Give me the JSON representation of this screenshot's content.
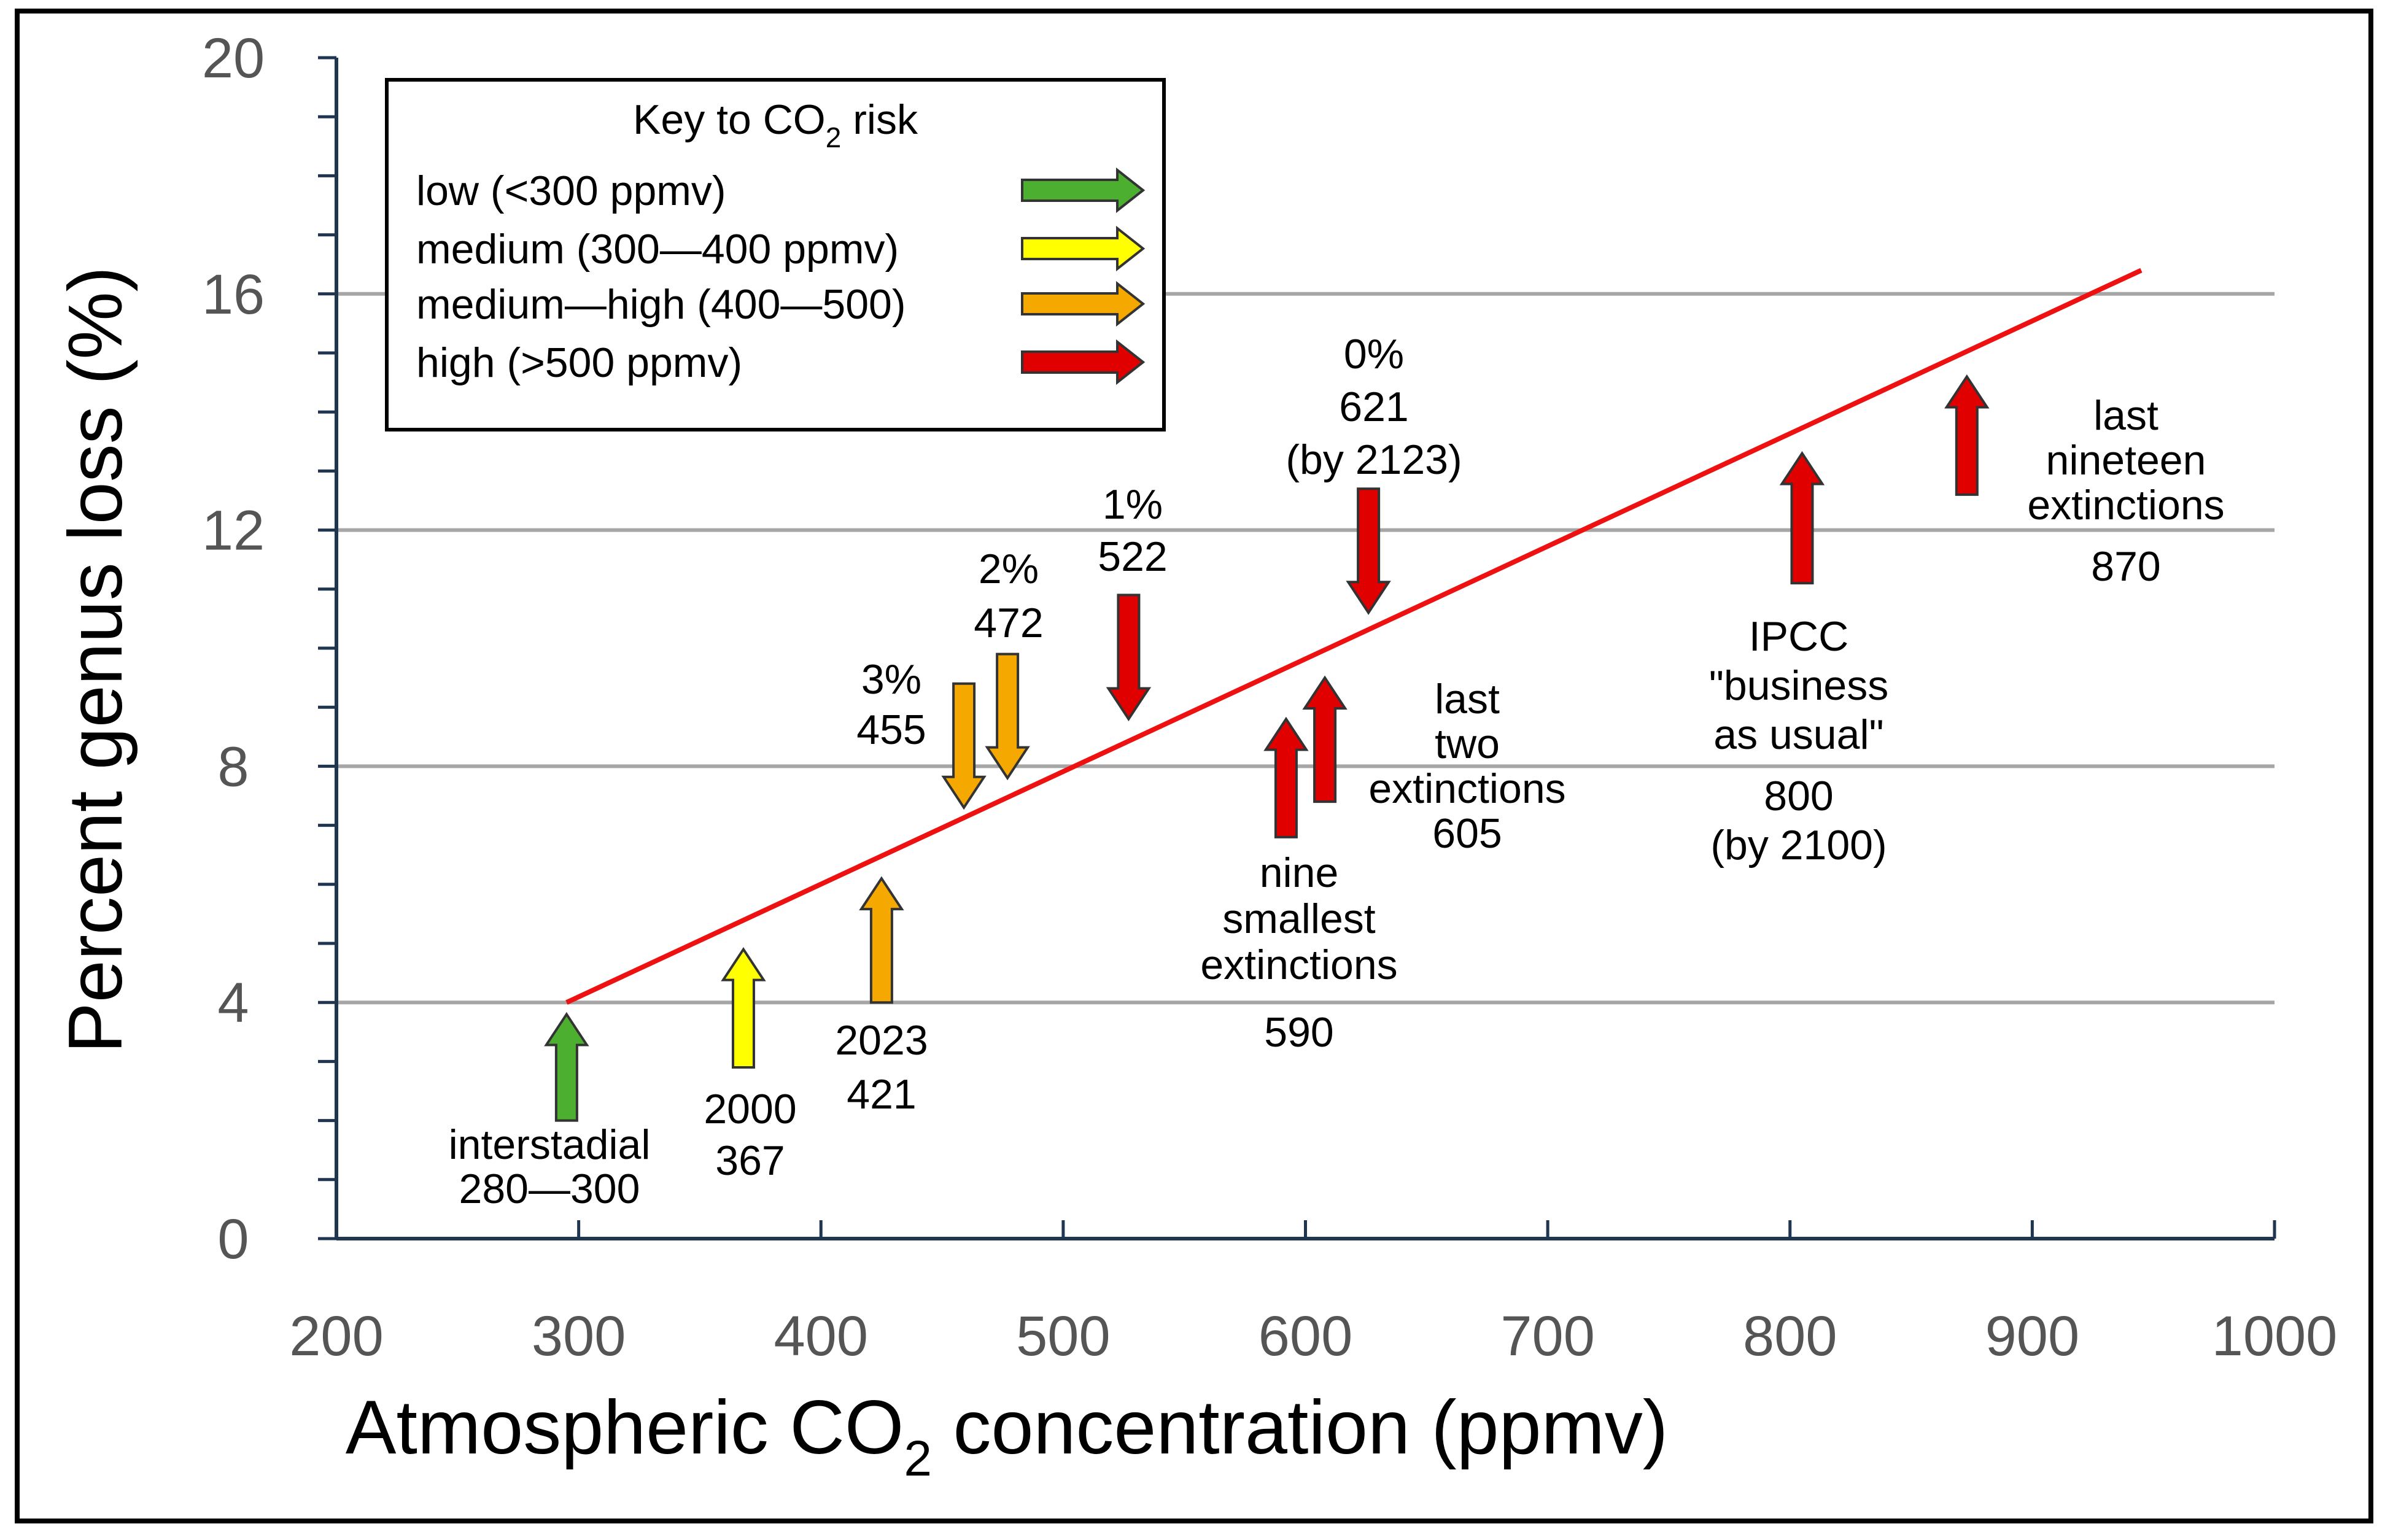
{
  "chart_data": {
    "type": "scatter",
    "title": "",
    "xlabel": "Atmospheric CO",
    "xlabel_sub": "2",
    "xlabel_tail": " concentration (ppmv)",
    "ylabel": "Percent genus loss (%)",
    "xlim": [
      200,
      1000
    ],
    "ylim": [
      0,
      20
    ],
    "x_ticks": [
      200,
      300,
      400,
      500,
      600,
      700,
      800,
      900,
      1000
    ],
    "y_ticks": [
      0,
      4,
      8,
      12,
      16,
      20
    ],
    "y_minor_step": 1,
    "grid": "horizontal at major y ticks",
    "trend_line": {
      "x": [
        295,
        945
      ],
      "y": [
        4.0,
        16.4
      ],
      "color": "#ee1111"
    },
    "risk_colors": {
      "low": "#4caf2f",
      "medium": "#ffff00",
      "medium_high": "#f5a800",
      "high": "#e00000"
    },
    "legend": {
      "title": "Key to CO",
      "title_sub": "2",
      "title_tail": " risk",
      "position": "top-left",
      "items": [
        {
          "label": "low (<300 ppmv)",
          "risk": "low"
        },
        {
          "label": "medium (300—400 ppmv)",
          "risk": "medium"
        },
        {
          "label": "medium—high (400—500)",
          "risk": "medium_high"
        },
        {
          "label": "high (>500 ppmv)",
          "risk": "high"
        }
      ]
    },
    "points": [
      {
        "id": "interstadial",
        "x": 295,
        "y_tail": 2.0,
        "y_head": 3.8,
        "direction": "up",
        "risk": "low",
        "lines": [
          "interstadial",
          "280—300"
        ]
      },
      {
        "id": "year2000",
        "x": 368,
        "y_tail": 2.9,
        "y_head": 4.9,
        "direction": "up",
        "risk": "medium",
        "lines": [
          "2000",
          "367"
        ]
      },
      {
        "id": "year2023",
        "x": 425,
        "y_tail": 4.0,
        "y_head": 6.1,
        "direction": "up",
        "risk": "medium_high",
        "lines": [
          "2023",
          "421"
        ]
      },
      {
        "id": "three-percent",
        "x": 459,
        "y_tail": 9.4,
        "y_head": 7.3,
        "direction": "down",
        "risk": "medium_high",
        "lines": [
          "3%",
          "455"
        ]
      },
      {
        "id": "two-percent",
        "x": 477,
        "y_tail": 9.9,
        "y_head": 7.8,
        "direction": "down",
        "risk": "medium_high",
        "lines": [
          "2%",
          "472"
        ]
      },
      {
        "id": "one-percent",
        "x": 527,
        "y_tail": 10.9,
        "y_head": 8.8,
        "direction": "down",
        "risk": "high",
        "lines": [
          "1%",
          "522"
        ]
      },
      {
        "id": "zero-percent",
        "x": 626,
        "y_tail": 12.7,
        "y_head": 10.6,
        "direction": "down",
        "risk": "high",
        "lines": [
          "0%",
          "621",
          "(by 2123)"
        ]
      },
      {
        "id": "nine-smallest",
        "x": 592,
        "y_tail": 6.8,
        "y_head": 8.8,
        "direction": "up",
        "risk": "high",
        "lines": [
          "nine",
          "smallest",
          "extinctions",
          "590"
        ]
      },
      {
        "id": "last-two",
        "x": 608,
        "y_tail": 7.4,
        "y_head": 9.5,
        "direction": "up",
        "risk": "high",
        "lines": [
          "last",
          "two",
          "extinctions",
          "605"
        ]
      },
      {
        "id": "ipcc",
        "x": 805,
        "y_tail": 11.1,
        "y_head": 13.3,
        "direction": "up",
        "risk": "high",
        "lines": [
          "IPCC",
          "\"business",
          "as usual\"",
          "800",
          "(by 2100)"
        ]
      },
      {
        "id": "last-nineteen",
        "x": 873,
        "y_tail": 12.6,
        "y_head": 14.6,
        "direction": "up",
        "risk": "high",
        "lines": [
          "last",
          "nineteen",
          "extinctions",
          "870"
        ]
      }
    ]
  }
}
